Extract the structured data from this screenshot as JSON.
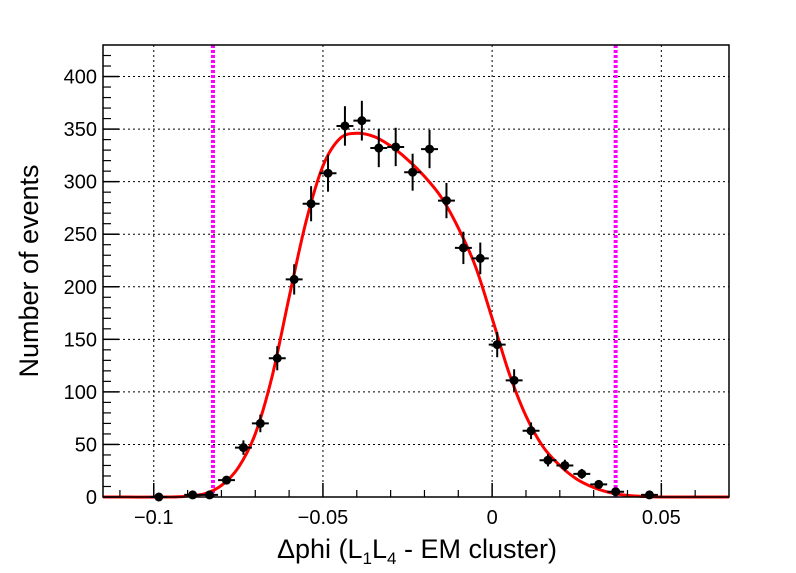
{
  "chart_data": {
    "type": "scatter",
    "title": "",
    "xlabel": {
      "prefix": "Δphi (L",
      "sub1": "1",
      "mid": "L",
      "sub2": "4",
      "suffix": " - EM cluster)"
    },
    "ylabel": "Number of events",
    "xlim": [
      -0.115,
      0.07
    ],
    "ylim": [
      0,
      430
    ],
    "grid": true,
    "x_ticks": [
      {
        "value": -0.1,
        "label": "−0.1"
      },
      {
        "value": -0.05,
        "label": "−0.05"
      },
      {
        "value": 0,
        "label": "0"
      },
      {
        "value": 0.05,
        "label": "0.05"
      }
    ],
    "y_ticks": [
      {
        "value": 0,
        "label": "0"
      },
      {
        "value": 50,
        "label": "50"
      },
      {
        "value": 100,
        "label": "100"
      },
      {
        "value": 150,
        "label": "150"
      },
      {
        "value": 200,
        "label": "200"
      },
      {
        "value": 250,
        "label": "250"
      },
      {
        "value": 300,
        "label": "300"
      },
      {
        "value": 350,
        "label": "350"
      },
      {
        "value": 400,
        "label": "400"
      }
    ],
    "bin_half_width": 0.0025,
    "points": [
      {
        "x": -0.0985,
        "y": 0
      },
      {
        "x": -0.0885,
        "y": 2
      },
      {
        "x": -0.0835,
        "y": 2
      },
      {
        "x": -0.0785,
        "y": 16
      },
      {
        "x": -0.0735,
        "y": 47
      },
      {
        "x": -0.0685,
        "y": 70
      },
      {
        "x": -0.0635,
        "y": 132
      },
      {
        "x": -0.0585,
        "y": 207
      },
      {
        "x": -0.0535,
        "y": 279
      },
      {
        "x": -0.0485,
        "y": 308
      },
      {
        "x": -0.0435,
        "y": 353
      },
      {
        "x": -0.0385,
        "y": 358
      },
      {
        "x": -0.0335,
        "y": 332
      },
      {
        "x": -0.0285,
        "y": 333
      },
      {
        "x": -0.0235,
        "y": 309
      },
      {
        "x": -0.0185,
        "y": 331
      },
      {
        "x": -0.0135,
        "y": 282
      },
      {
        "x": -0.0085,
        "y": 237
      },
      {
        "x": -0.0035,
        "y": 227
      },
      {
        "x": 0.0015,
        "y": 145
      },
      {
        "x": 0.0065,
        "y": 111
      },
      {
        "x": 0.0115,
        "y": 63
      },
      {
        "x": 0.0165,
        "y": 35
      },
      {
        "x": 0.0215,
        "y": 30
      },
      {
        "x": 0.0265,
        "y": 22
      },
      {
        "x": 0.0315,
        "y": 12
      },
      {
        "x": 0.0365,
        "y": 5
      },
      {
        "x": 0.0465,
        "y": 2
      }
    ],
    "fit_curve": {
      "color": "#ff0000",
      "points": [
        [
          -0.115,
          0
        ],
        [
          -0.095,
          0
        ],
        [
          -0.09,
          1
        ],
        [
          -0.085,
          3
        ],
        [
          -0.08,
          11
        ],
        [
          -0.075,
          28
        ],
        [
          -0.07,
          60
        ],
        [
          -0.065,
          115
        ],
        [
          -0.06,
          190
        ],
        [
          -0.055,
          262
        ],
        [
          -0.05,
          315
        ],
        [
          -0.045,
          341
        ],
        [
          -0.04,
          346
        ],
        [
          -0.035,
          343
        ],
        [
          -0.03,
          334
        ],
        [
          -0.025,
          321
        ],
        [
          -0.02,
          305
        ],
        [
          -0.015,
          285
        ],
        [
          -0.01,
          256
        ],
        [
          -0.005,
          220
        ],
        [
          0,
          170
        ],
        [
          0.005,
          118
        ],
        [
          0.01,
          77
        ],
        [
          0.015,
          48
        ],
        [
          0.02,
          30
        ],
        [
          0.025,
          17
        ],
        [
          0.03,
          9
        ],
        [
          0.035,
          4
        ],
        [
          0.04,
          1.5
        ],
        [
          0.045,
          0.5
        ],
        [
          0.05,
          0
        ],
        [
          0.07,
          0
        ]
      ]
    },
    "cut_lines": {
      "color": "#ff00ff",
      "x": [
        -0.0825,
        0.0365
      ]
    },
    "marker_color": "#000000"
  }
}
